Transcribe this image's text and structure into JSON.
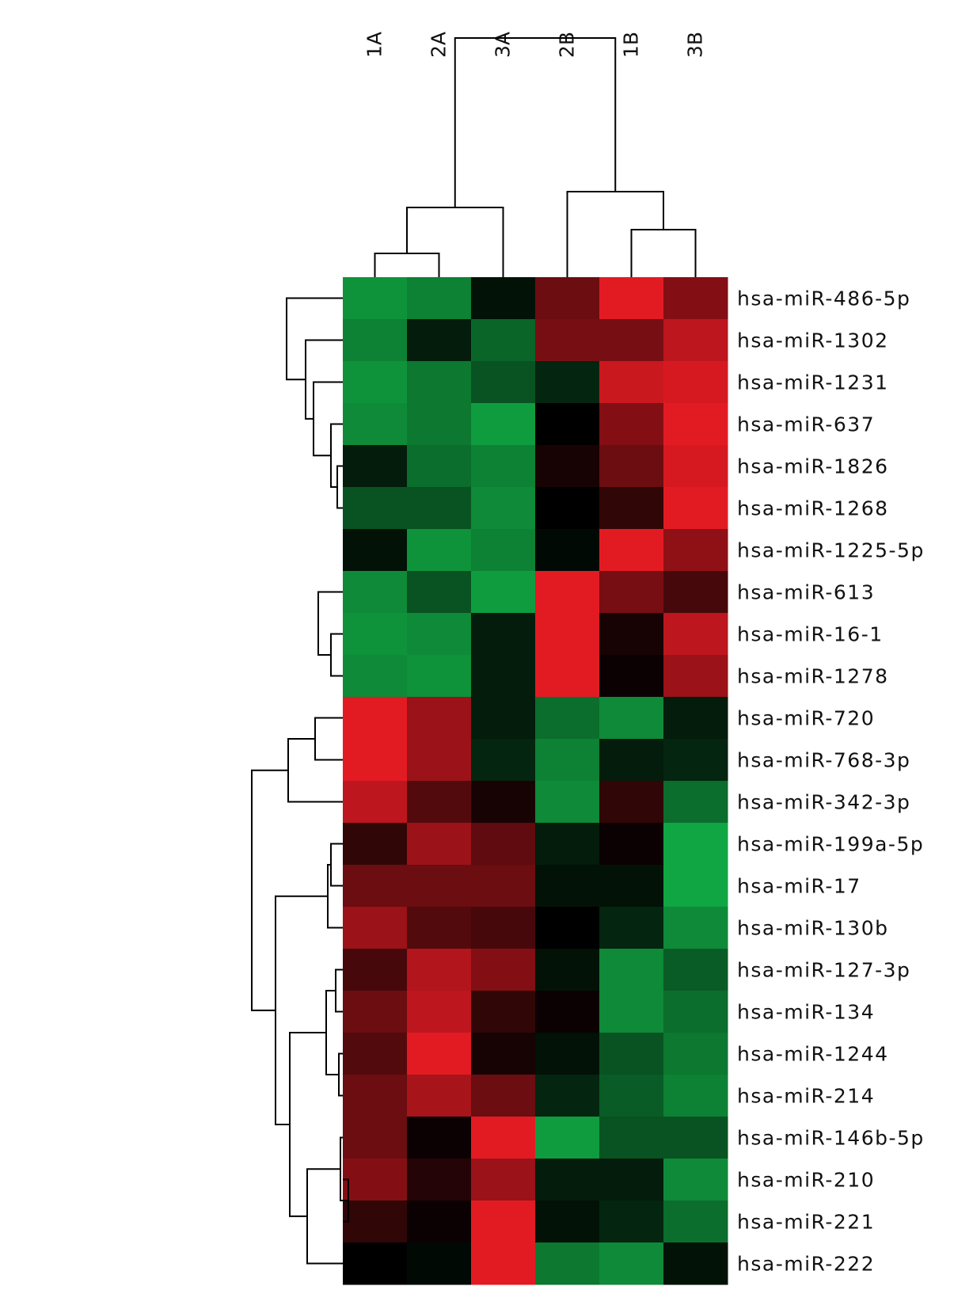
{
  "chart_data": {
    "type": "heatmap",
    "title": "",
    "xlabel": "",
    "ylabel": "",
    "columns": [
      "1A",
      "2A",
      "3A",
      "2B",
      "1B",
      "3B"
    ],
    "rows": [
      "hsa-miR-486-5p",
      "hsa-miR-1302",
      "hsa-miR-1231",
      "hsa-miR-637",
      "hsa-miR-1826",
      "hsa-miR-1268",
      "hsa-miR-1225-5p",
      "hsa-miR-613",
      "hsa-miR-16-1",
      "hsa-miR-1278",
      "hsa-miR-720",
      "hsa-miR-768-3p",
      "hsa-miR-342-3p",
      "hsa-miR-199a-5p",
      "hsa-miR-17",
      "hsa-miR-130b",
      "hsa-miR-127-3p",
      "hsa-miR-134",
      "hsa-miR-1244",
      "hsa-miR-214",
      "hsa-miR-146b-5p",
      "hsa-miR-210",
      "hsa-miR-221",
      "hsa-miR-222"
    ],
    "values": [
      [
        -0.8,
        -0.7,
        -0.1,
        0.45,
        0.95,
        0.55
      ],
      [
        -0.7,
        -0.15,
        -0.55,
        0.5,
        0.5,
        0.8
      ],
      [
        -0.8,
        -0.65,
        -0.45,
        -0.2,
        0.85,
        0.9
      ],
      [
        -0.75,
        -0.65,
        -0.85,
        0.0,
        0.55,
        0.95
      ],
      [
        -0.15,
        -0.6,
        -0.7,
        0.1,
        0.45,
        0.9
      ],
      [
        -0.45,
        -0.45,
        -0.75,
        0.0,
        0.2,
        0.95
      ],
      [
        -0.1,
        -0.8,
        -0.7,
        -0.05,
        0.95,
        0.6
      ],
      [
        -0.75,
        -0.45,
        -0.85,
        0.95,
        0.5,
        0.3
      ],
      [
        -0.8,
        -0.75,
        -0.15,
        0.95,
        0.1,
        0.8
      ],
      [
        -0.75,
        -0.8,
        -0.15,
        0.95,
        0.05,
        0.65
      ],
      [
        0.95,
        0.65,
        -0.15,
        -0.6,
        -0.75,
        -0.15
      ],
      [
        0.95,
        0.65,
        -0.2,
        -0.7,
        -0.15,
        -0.2
      ],
      [
        0.8,
        0.35,
        0.1,
        -0.75,
        0.2,
        -0.6
      ],
      [
        0.2,
        0.65,
        0.4,
        -0.15,
        0.05,
        -0.9
      ],
      [
        0.45,
        0.45,
        0.45,
        -0.1,
        -0.1,
        -0.9
      ],
      [
        0.65,
        0.35,
        0.3,
        0.0,
        -0.2,
        -0.75
      ],
      [
        0.3,
        0.75,
        0.55,
        -0.1,
        -0.75,
        -0.5
      ],
      [
        0.45,
        0.8,
        0.2,
        0.05,
        -0.75,
        -0.6
      ],
      [
        0.35,
        0.95,
        0.1,
        -0.1,
        -0.45,
        -0.65
      ],
      [
        0.45,
        0.7,
        0.45,
        -0.2,
        -0.5,
        -0.7
      ],
      [
        0.45,
        0.05,
        0.95,
        -0.85,
        -0.45,
        -0.45
      ],
      [
        0.55,
        0.15,
        0.65,
        -0.15,
        -0.15,
        -0.75
      ],
      [
        0.2,
        0.05,
        0.95,
        -0.1,
        -0.2,
        -0.6
      ],
      [
        0.0,
        -0.05,
        0.95,
        -0.65,
        -0.75,
        -0.1
      ]
    ],
    "value_range": [
      -1,
      1
    ],
    "color_scale": {
      "low": "#12b84a",
      "mid": "#000000",
      "high": "#ee1c25"
    },
    "legend": false,
    "grid": false
  }
}
